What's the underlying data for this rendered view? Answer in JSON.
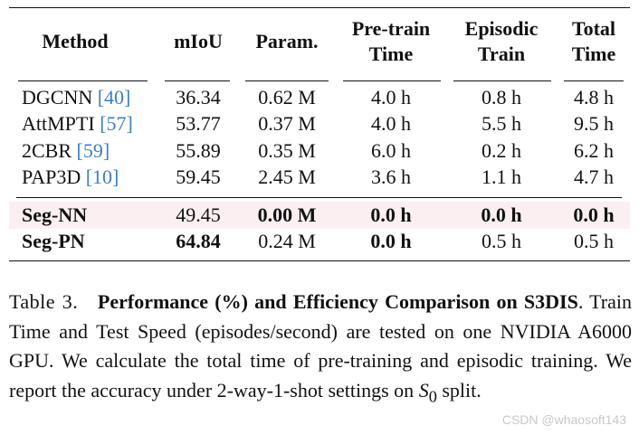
{
  "table": {
    "headers": {
      "method": "Method",
      "miou": "mIoU",
      "param": "Param.",
      "pretrain": [
        "Pre-train",
        "Time"
      ],
      "episodic": [
        "Episodic",
        "Train"
      ],
      "total": [
        "Total",
        "Time"
      ]
    },
    "rows": [
      {
        "method": "DGCNN ",
        "ref": "[40]",
        "miou": "36.34",
        "param": "0.62 M",
        "pretrain": "4.0 h",
        "episodic": "0.8 h",
        "total": "4.8 h"
      },
      {
        "method": "AttMPTI ",
        "ref": "[57]",
        "miou": "53.77",
        "param": "0.37 M",
        "pretrain": "4.0 h",
        "episodic": "5.5 h",
        "total": "9.5 h"
      },
      {
        "method": "2CBR ",
        "ref": "[59]",
        "miou": "55.89",
        "param": "0.35 M",
        "pretrain": "6.0 h",
        "episodic": "0.2 h",
        "total": "6.2 h"
      },
      {
        "method": "PAP3D ",
        "ref": "[10]",
        "miou": "59.45",
        "param": "2.45 M",
        "pretrain": "3.6 h",
        "episodic": "1.1 h",
        "total": "4.7 h"
      },
      {
        "method": "Seg-NN",
        "ref": "",
        "miou": "49.45",
        "param": "0.00 M",
        "pretrain": "0.0 h",
        "episodic": "0.0 h",
        "total": "0.0 h"
      },
      {
        "method": "Seg-PN",
        "ref": "",
        "miou": "64.84",
        "param": "0.24 M",
        "pretrain": "0.0 h",
        "episodic": "0.5 h",
        "total": "0.5 h"
      }
    ],
    "highlight_color": "#fbeff1",
    "ref_color": "#3b7fc4"
  },
  "caption": {
    "label": "Table 3.",
    "title_bold": "Performance (%) and Efficiency Comparison on S3DIS",
    "title_end": ".",
    "text_1": " Train Time and Test Speed (episodes/second) are tested on one NVIDIA A6000 GPU. We calculate the total time of pre-training and episodic training.  We report the accuracy under 2-way-1-shot settings on ",
    "math_s": "S",
    "math_sub": "0",
    "text_2": " split."
  },
  "watermark": "CSDN @whaosoft143"
}
